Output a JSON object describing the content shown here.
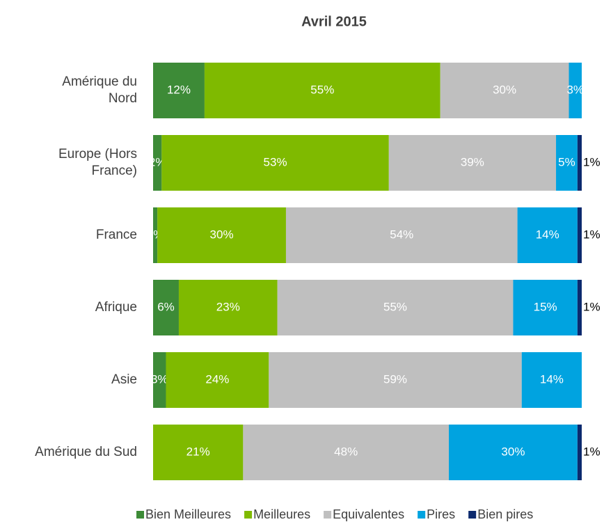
{
  "chart_data": {
    "type": "stacked-bar-horizontal",
    "title": "Avril 2015",
    "categories": [
      "Amérique du Nord",
      "Europe (Hors France)",
      "France",
      "Afrique",
      "Asie",
      "Amérique du Sud"
    ],
    "series": [
      {
        "name": "Bien Meilleures",
        "color": "#3d8b37",
        "values": [
          12,
          2,
          1,
          6,
          3,
          null
        ],
        "value_labels": [
          "12%",
          "2%",
          "1%",
          "6%",
          "3%",
          null
        ]
      },
      {
        "name": "Meilleures",
        "color": "#7fba00",
        "values": [
          55,
          53,
          30,
          23,
          24,
          21
        ],
        "value_labels": [
          "55%",
          "53%",
          "30%",
          "23%",
          "24%",
          "21%"
        ]
      },
      {
        "name": "Equivalentes",
        "color": "#bfbfbf",
        "values": [
          30,
          39,
          54,
          55,
          59,
          48
        ],
        "value_labels": [
          "30%",
          "39%",
          "54%",
          "55%",
          "59%",
          "48%"
        ]
      },
      {
        "name": "Pires",
        "color": "#00a3e0",
        "values": [
          3,
          5,
          14,
          15,
          14,
          30
        ],
        "value_labels": [
          "3%",
          "5%",
          "14%",
          "15%",
          "14%",
          "30%"
        ]
      },
      {
        "name": "Bien pires",
        "color": "#0c2a6e",
        "values": [
          null,
          1,
          1,
          1,
          null,
          1
        ],
        "value_labels": [
          null,
          "1%",
          "1%",
          "1%",
          null,
          "1%"
        ]
      }
    ],
    "xlim": [
      0,
      100
    ]
  }
}
